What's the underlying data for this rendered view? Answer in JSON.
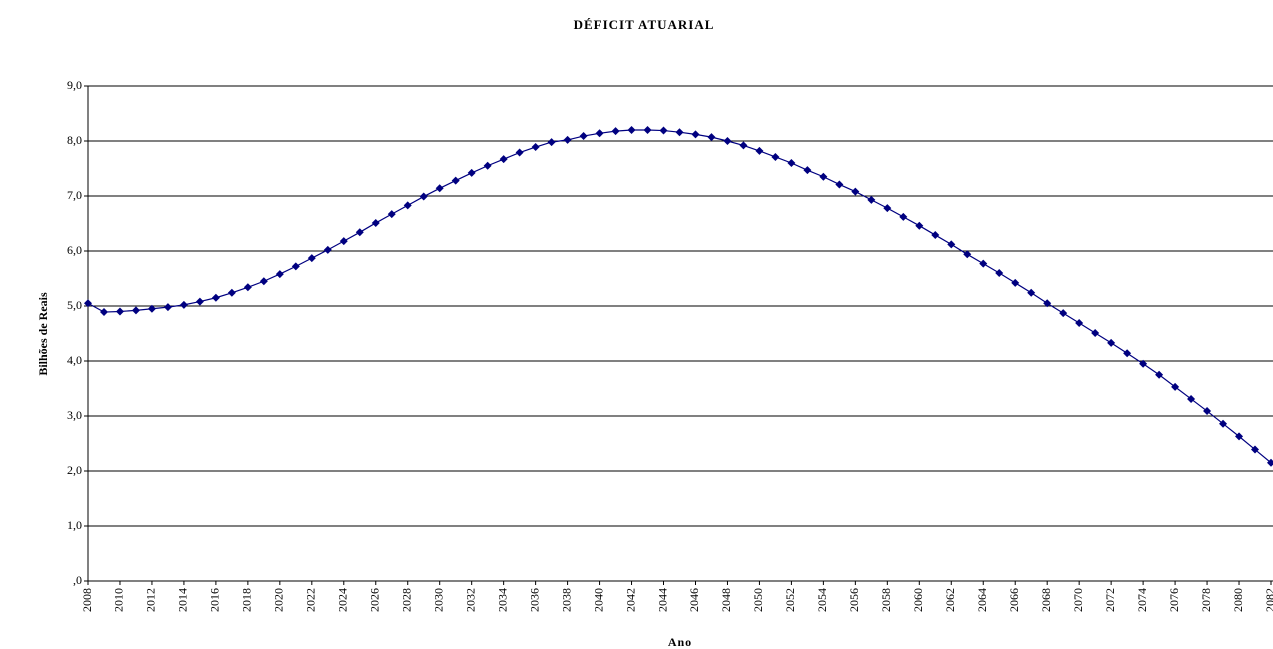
{
  "chart_data": {
    "type": "line",
    "title": "DÉFICIT ATUARIAL",
    "xlabel": "Ano",
    "ylabel": "Bilhões de Reais",
    "x": [
      2008,
      2009,
      2010,
      2011,
      2012,
      2013,
      2014,
      2015,
      2016,
      2017,
      2018,
      2019,
      2020,
      2021,
      2022,
      2023,
      2024,
      2025,
      2026,
      2027,
      2028,
      2029,
      2030,
      2031,
      2032,
      2033,
      2034,
      2035,
      2036,
      2037,
      2038,
      2039,
      2040,
      2041,
      2042,
      2043,
      2044,
      2045,
      2046,
      2047,
      2048,
      2049,
      2050,
      2051,
      2052,
      2053,
      2054,
      2055,
      2056,
      2057,
      2058,
      2059,
      2060,
      2061,
      2062,
      2063,
      2064,
      2065,
      2066,
      2067,
      2068,
      2069,
      2070,
      2071,
      2072,
      2073,
      2074,
      2075,
      2076,
      2077,
      2078,
      2079,
      2080,
      2081,
      2082
    ],
    "series": [
      {
        "color": "#000080",
        "values": [
          5.05,
          4.89,
          4.9,
          4.92,
          4.95,
          4.98,
          5.02,
          5.08,
          5.15,
          5.24,
          5.34,
          5.45,
          5.58,
          5.72,
          5.87,
          6.02,
          6.18,
          6.34,
          6.51,
          6.67,
          6.83,
          6.99,
          7.14,
          7.28,
          7.42,
          7.55,
          7.67,
          7.79,
          7.89,
          7.98,
          8.02,
          8.09,
          8.14,
          8.18,
          8.2,
          8.2,
          8.19,
          8.16,
          8.12,
          8.07,
          8.0,
          7.92,
          7.82,
          7.71,
          7.6,
          7.47,
          7.35,
          7.21,
          7.08,
          6.93,
          6.78,
          6.62,
          6.46,
          6.29,
          6.12,
          5.94,
          5.77,
          5.6,
          5.42,
          5.24,
          5.05,
          4.87,
          4.69,
          4.51,
          4.33,
          4.14,
          3.95,
          3.75,
          3.53,
          3.31,
          3.09,
          2.86,
          2.63,
          2.39,
          2.15
        ]
      }
    ],
    "xlim": [
      2008,
      2082
    ],
    "xticks": [
      2008,
      2010,
      2012,
      2014,
      2016,
      2018,
      2020,
      2022,
      2024,
      2026,
      2028,
      2030,
      2032,
      2034,
      2036,
      2038,
      2040,
      2042,
      2044,
      2046,
      2048,
      2050,
      2052,
      2054,
      2056,
      2058,
      2060,
      2062,
      2064,
      2066,
      2068,
      2070,
      2072,
      2074,
      2076,
      2078,
      2080,
      2082
    ],
    "ylim": [
      0,
      9
    ],
    "yticks": [
      {
        "value": 0,
        "label": ",0"
      },
      {
        "value": 1,
        "label": "1,0"
      },
      {
        "value": 2,
        "label": "2,0"
      },
      {
        "value": 3,
        "label": "3,0"
      },
      {
        "value": 4,
        "label": "4,0"
      },
      {
        "value": 5,
        "label": "5,0"
      },
      {
        "value": 6,
        "label": "6,0"
      },
      {
        "value": 7,
        "label": "7,0"
      },
      {
        "value": 8,
        "label": "8,0"
      },
      {
        "value": 9,
        "label": "9,0"
      }
    ],
    "grid": true
  }
}
